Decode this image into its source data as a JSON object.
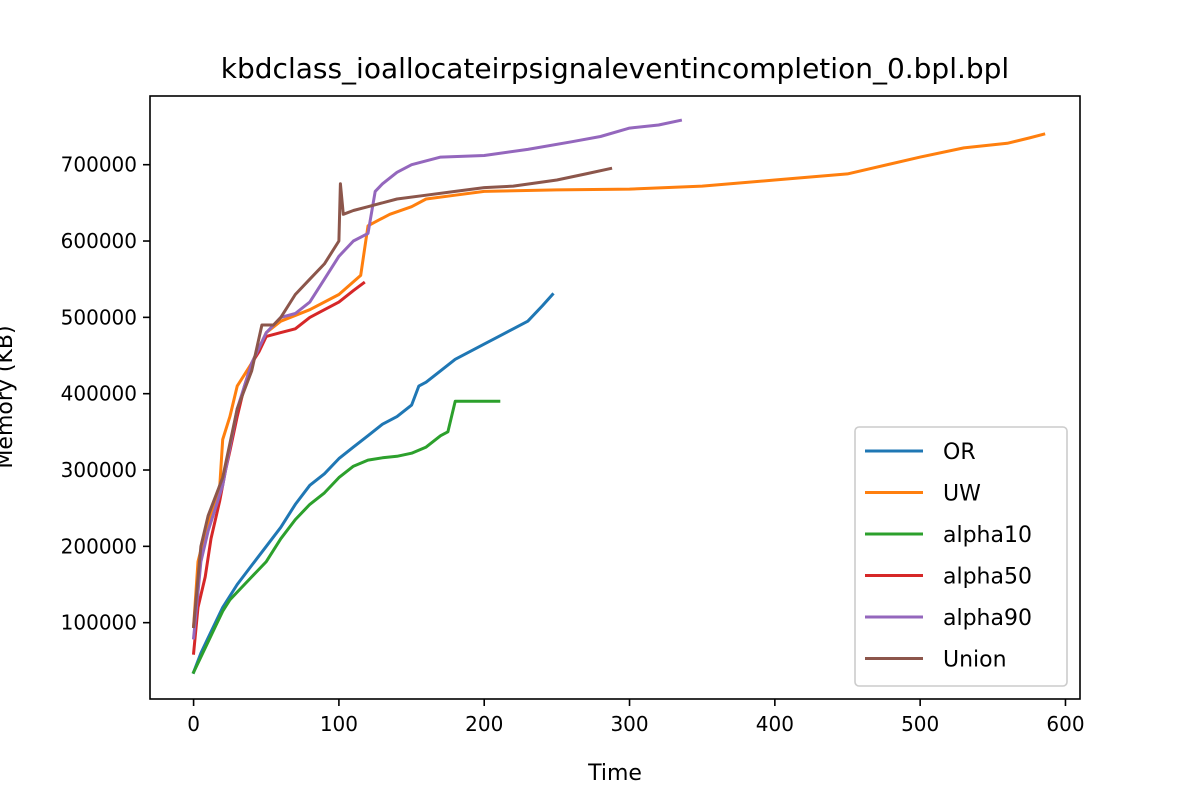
{
  "chart_data": {
    "type": "line",
    "title": "kbdclass_ioallocateirpsignaleventincompletion_0.bpl.bpl",
    "xlabel": "Time",
    "ylabel": "Memory (KB)",
    "xlim": [
      -30,
      610
    ],
    "ylim": [
      0,
      790000
    ],
    "xticks": [
      0,
      100,
      200,
      300,
      400,
      500,
      600
    ],
    "yticks": [
      100000,
      200000,
      300000,
      400000,
      500000,
      600000,
      700000
    ],
    "grid": false,
    "legend_position": "bottom-right",
    "series": [
      {
        "name": "OR",
        "color": "#1f77b4",
        "x": [
          0,
          5,
          10,
          15,
          20,
          25,
          30,
          40,
          50,
          60,
          70,
          80,
          90,
          100,
          110,
          120,
          130,
          140,
          150,
          155,
          160,
          170,
          180,
          190,
          200,
          210,
          220,
          230,
          240,
          247
        ],
        "y": [
          35000,
          60000,
          80000,
          100000,
          120000,
          135000,
          150000,
          175000,
          200000,
          225000,
          255000,
          280000,
          295000,
          315000,
          330000,
          345000,
          360000,
          370000,
          385000,
          410000,
          415000,
          430000,
          445000,
          455000,
          465000,
          475000,
          485000,
          495000,
          515000,
          530000
        ]
      },
      {
        "name": "UW",
        "color": "#ff7f0e",
        "x": [
          0,
          3,
          7,
          12,
          18,
          20,
          25,
          30,
          40,
          50,
          60,
          80,
          100,
          115,
          120,
          125,
          135,
          150,
          160,
          180,
          200,
          250,
          300,
          350,
          400,
          450,
          500,
          530,
          560,
          575,
          585
        ],
        "y": [
          95000,
          180000,
          210000,
          240000,
          280000,
          340000,
          370000,
          410000,
          440000,
          480000,
          495000,
          510000,
          530000,
          555000,
          620000,
          625000,
          635000,
          645000,
          655000,
          660000,
          665000,
          667000,
          668000,
          672000,
          680000,
          688000,
          710000,
          722000,
          728000,
          735000,
          740000
        ]
      },
      {
        "name": "alpha10",
        "color": "#2ca02c",
        "x": [
          0,
          5,
          10,
          15,
          20,
          25,
          30,
          40,
          50,
          60,
          70,
          80,
          90,
          100,
          110,
          120,
          130,
          140,
          150,
          160,
          170,
          175,
          180,
          190,
          200,
          210
        ],
        "y": [
          35000,
          55000,
          75000,
          95000,
          115000,
          130000,
          140000,
          160000,
          180000,
          210000,
          235000,
          255000,
          270000,
          290000,
          305000,
          313000,
          316000,
          318000,
          322000,
          330000,
          345000,
          350000,
          390000,
          390000,
          390000,
          390000
        ]
      },
      {
        "name": "alpha50",
        "color": "#d62728",
        "x": [
          0,
          3,
          8,
          12,
          18,
          22,
          25,
          30,
          35,
          40,
          45,
          50,
          60,
          70,
          80,
          90,
          100,
          110,
          117
        ],
        "y": [
          60000,
          120000,
          160000,
          210000,
          260000,
          300000,
          325000,
          370000,
          410000,
          440000,
          455000,
          475000,
          480000,
          485000,
          500000,
          510000,
          520000,
          535000,
          545000
        ]
      },
      {
        "name": "alpha90",
        "color": "#9467bd",
        "x": [
          0,
          5,
          10,
          20,
          30,
          40,
          50,
          60,
          70,
          80,
          90,
          100,
          110,
          120,
          125,
          130,
          140,
          150,
          170,
          200,
          230,
          260,
          280,
          300,
          320,
          335
        ],
        "y": [
          80000,
          180000,
          220000,
          280000,
          380000,
          440000,
          480000,
          500000,
          505000,
          520000,
          550000,
          580000,
          600000,
          610000,
          665000,
          675000,
          690000,
          700000,
          710000,
          712000,
          720000,
          730000,
          737000,
          748000,
          752000,
          758000
        ]
      },
      {
        "name": "Union",
        "color": "#8c564b",
        "x": [
          0,
          5,
          10,
          20,
          30,
          40,
          47,
          55,
          60,
          70,
          80,
          90,
          100,
          101,
          103,
          110,
          120,
          140,
          160,
          180,
          200,
          220,
          250,
          270,
          287
        ],
        "y": [
          95000,
          200000,
          240000,
          290000,
          380000,
          430000,
          490000,
          490000,
          500000,
          530000,
          550000,
          570000,
          600000,
          675000,
          635000,
          640000,
          645000,
          655000,
          660000,
          665000,
          670000,
          672000,
          680000,
          688000,
          695000
        ]
      }
    ]
  }
}
